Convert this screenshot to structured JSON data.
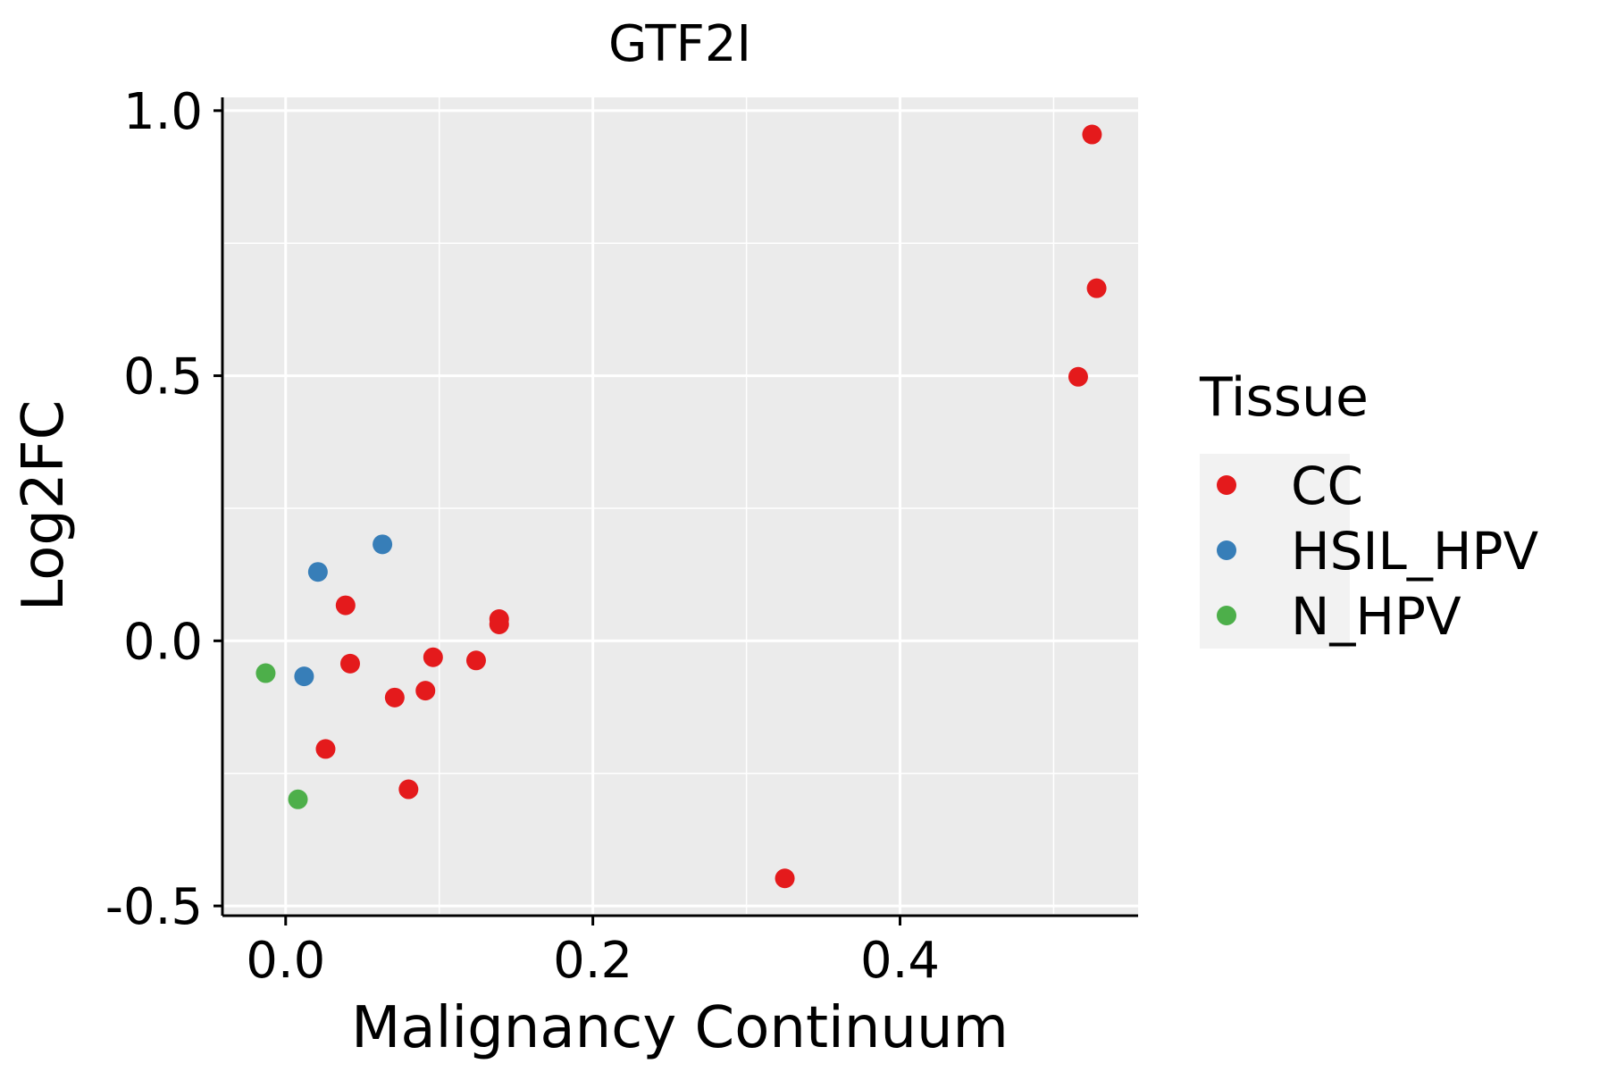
{
  "chart_data": {
    "type": "scatter",
    "title": "GTF2I",
    "xlabel": "Malignancy Continuum",
    "ylabel": "Log2FC",
    "xlim": [
      -0.04,
      0.555
    ],
    "ylim": [
      -0.515,
      1.025
    ],
    "x_ticks": [
      0.0,
      0.2,
      0.4
    ],
    "x_tick_labels": [
      "0.0",
      "0.2",
      "0.4"
    ],
    "x_minor": [
      0.1,
      0.3,
      0.5
    ],
    "y_ticks": [
      -0.5,
      0.0,
      0.5,
      1.0
    ],
    "y_tick_labels": [
      "-0.5",
      "0.0",
      "0.5",
      "1.0"
    ],
    "y_minor": [
      -0.25,
      0.25,
      0.75
    ],
    "grid": true,
    "legend": {
      "title": "Tissue",
      "position": "right",
      "entries": [
        {
          "label": "CC",
          "color": "#E41A1C"
        },
        {
          "label": "HSIL_HPV",
          "color": "#377EB8"
        },
        {
          "label": "N_HPV",
          "color": "#4DAF4A"
        }
      ]
    },
    "series": [
      {
        "name": "CC",
        "color": "#E41A1C",
        "points": [
          {
            "x": 0.525,
            "y": 0.955
          },
          {
            "x": 0.528,
            "y": 0.665
          },
          {
            "x": 0.516,
            "y": 0.498
          },
          {
            "x": 0.039,
            "y": 0.067
          },
          {
            "x": 0.139,
            "y": 0.041
          },
          {
            "x": 0.139,
            "y": 0.031
          },
          {
            "x": 0.042,
            "y": -0.043
          },
          {
            "x": 0.096,
            "y": -0.031
          },
          {
            "x": 0.124,
            "y": -0.037
          },
          {
            "x": 0.071,
            "y": -0.107
          },
          {
            "x": 0.091,
            "y": -0.094
          },
          {
            "x": 0.026,
            "y": -0.204
          },
          {
            "x": 0.08,
            "y": -0.28
          },
          {
            "x": 0.325,
            "y": -0.448
          }
        ]
      },
      {
        "name": "HSIL_HPV",
        "color": "#377EB8",
        "points": [
          {
            "x": 0.063,
            "y": 0.182
          },
          {
            "x": 0.021,
            "y": 0.13
          },
          {
            "x": 0.012,
            "y": -0.067
          }
        ]
      },
      {
        "name": "N_HPV",
        "color": "#4DAF4A",
        "points": [
          {
            "x": -0.013,
            "y": -0.061
          },
          {
            "x": 0.008,
            "y": -0.299
          }
        ]
      }
    ]
  }
}
